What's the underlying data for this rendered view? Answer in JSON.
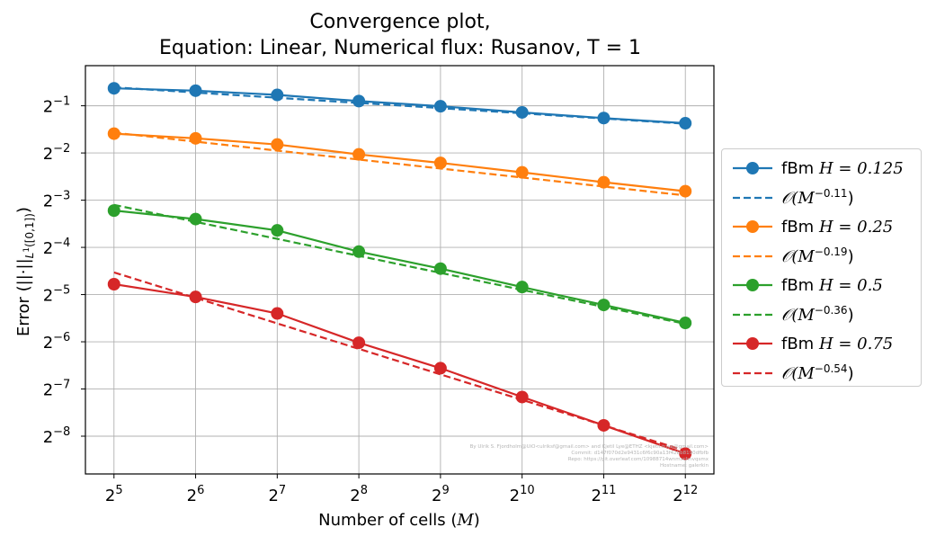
{
  "chart_data": {
    "type": "line",
    "title": "Convergence plot,",
    "subtitle": "Equation: Linear, Numerical flux: Rusanov, T = 1",
    "xlabel": "Number of cells (M)",
    "ylabel": "Error (||·||L¹([0,1]))",
    "x_scale": "log2",
    "y_scale": "log2",
    "x": [
      32,
      64,
      128,
      256,
      512,
      1024,
      2048,
      4096
    ],
    "x_tick_exponents": [
      5,
      6,
      7,
      8,
      9,
      10,
      11,
      12
    ],
    "y_tick_exponents": [
      -1,
      -2,
      -3,
      -4,
      -5,
      -6,
      -7,
      -8
    ],
    "xlim_log2": [
      4.65,
      12.35
    ],
    "ylim_log2": [
      -8.8,
      -0.15
    ],
    "grid": true,
    "legend_position": "right, outside",
    "series": [
      {
        "name": "fBm H = 0.125",
        "color": "#1f77b4",
        "log2_values": [
          -0.63,
          -0.68,
          -0.77,
          -0.9,
          -1.01,
          -1.14,
          -1.26,
          -1.37
        ]
      },
      {
        "name": "O(M^-0.11)",
        "color": "#1f77b4",
        "style": "dashed",
        "log2_values": [
          -0.61,
          -0.72,
          -0.83,
          -0.94,
          -1.05,
          -1.16,
          -1.27,
          -1.38
        ]
      },
      {
        "name": "fBm H = 0.25",
        "color": "#ff7f0e",
        "log2_values": [
          -1.59,
          -1.69,
          -1.82,
          -2.03,
          -2.21,
          -2.41,
          -2.62,
          -2.81
        ]
      },
      {
        "name": "O(M^-0.19)",
        "color": "#ff7f0e",
        "style": "dashed",
        "log2_values": [
          -1.57,
          -1.76,
          -1.95,
          -2.14,
          -2.33,
          -2.52,
          -2.71,
          -2.9
        ]
      },
      {
        "name": "fBm H = 0.5",
        "color": "#2ca02c",
        "log2_values": [
          -3.22,
          -3.4,
          -3.64,
          -4.09,
          -4.45,
          -4.84,
          -5.22,
          -5.6
        ]
      },
      {
        "name": "O(M^-0.36)",
        "color": "#2ca02c",
        "style": "dashed",
        "log2_values": [
          -3.1,
          -3.46,
          -3.82,
          -4.18,
          -4.54,
          -4.9,
          -5.26,
          -5.62
        ]
      },
      {
        "name": "fBm H = 0.75",
        "color": "#d62728",
        "log2_values": [
          -4.78,
          -5.05,
          -5.4,
          -6.02,
          -6.56,
          -7.17,
          -7.77,
          -8.37
        ]
      },
      {
        "name": "O(M^-0.54)",
        "color": "#d62728",
        "style": "dashed",
        "log2_values": [
          -4.53,
          -5.07,
          -5.61,
          -6.15,
          -6.69,
          -7.23,
          -7.77,
          -8.31
        ]
      }
    ]
  },
  "legend": [
    {
      "label": "fBm H = 0.125",
      "prefix": "fBm ",
      "math": "H = 0.125",
      "color": "#1f77b4",
      "style": "solid"
    },
    {
      "label": "O(M^-0.11)",
      "math": "𝒪(M",
      "exp": "−0.11",
      "close": ")",
      "color": "#1f77b4",
      "style": "dashed"
    },
    {
      "label": "fBm H = 0.25",
      "prefix": "fBm ",
      "math": "H = 0.25",
      "color": "#ff7f0e",
      "style": "solid"
    },
    {
      "label": "O(M^-0.19)",
      "math": "𝒪(M",
      "exp": "−0.19",
      "close": ")",
      "color": "#ff7f0e",
      "style": "dashed"
    },
    {
      "label": "fBm H = 0.5",
      "prefix": "fBm ",
      "math": "H = 0.5",
      "color": "#2ca02c",
      "style": "solid"
    },
    {
      "label": "O(M^-0.36)",
      "math": "𝒪(M",
      "exp": "−0.36",
      "close": ")",
      "color": "#2ca02c",
      "style": "dashed"
    },
    {
      "label": "fBm H = 0.75",
      "prefix": "fBm ",
      "math": "H = 0.75",
      "color": "#d62728",
      "style": "solid"
    },
    {
      "label": "O(M^-0.54)",
      "math": "𝒪(M",
      "exp": "−0.54",
      "close": ")",
      "color": "#d62728",
      "style": "dashed"
    }
  ],
  "watermark": [
    "By Ulrik S. Fjordholm@UiO<ulriksf@gmail.com> and Kjetil Lye@ETHZ <kjetil.o.lye@gmail.com>",
    "Commit: d147f070d2e9431c6f6c90a13f42bb8190dfbfb",
    "Repo: https://git.overleaf.com/10988714wnmxchnvqsmx",
    "Hostname: galerkin"
  ]
}
